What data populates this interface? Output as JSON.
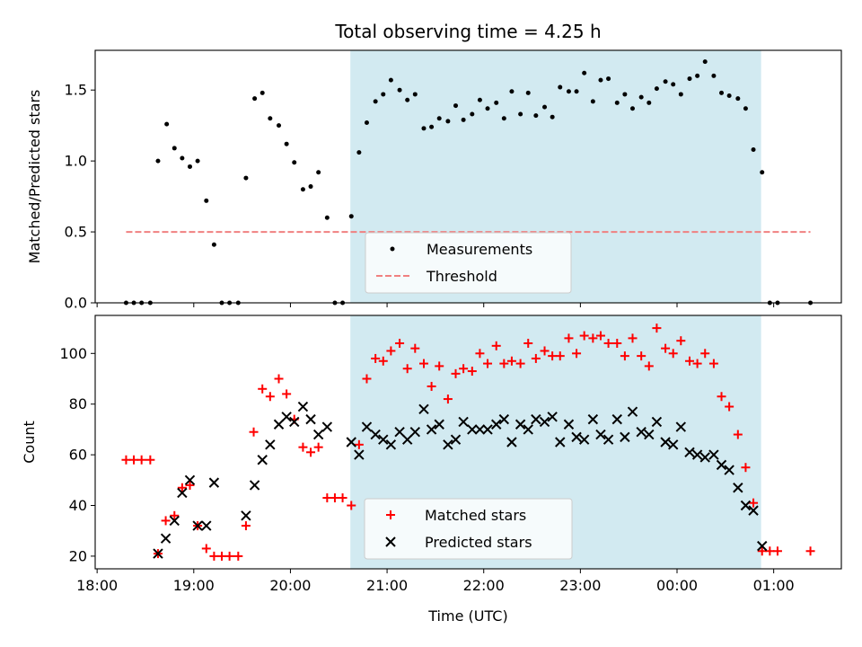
{
  "chart_data": [
    {
      "type": "scatter",
      "title": "Total observing time = 4.25 h",
      "xlabel": "",
      "ylabel": "Matched/Predicted stars",
      "ylim": [
        0,
        1.78
      ],
      "xlim_hours": [
        17.98,
        25.7
      ],
      "yticks": [
        0.0,
        0.5,
        1.0,
        1.5
      ],
      "ytick_labels": [
        "0.0",
        "0.5",
        "1.0",
        "1.5"
      ],
      "shaded_region_hours": [
        20.62,
        24.87
      ],
      "shade_color": "#add8e6",
      "legend_position": "lower-center",
      "series": [
        {
          "name": "Measurements",
          "marker": "dot",
          "color": "#000000",
          "points": [
            [
              18.3,
              0
            ],
            [
              18.38,
              0
            ],
            [
              18.46,
              0
            ],
            [
              18.55,
              0
            ],
            [
              18.63,
              1.0
            ],
            [
              18.72,
              1.26
            ],
            [
              18.8,
              1.09
            ],
            [
              18.88,
              1.02
            ],
            [
              18.96,
              0.96
            ],
            [
              19.04,
              1.0
            ],
            [
              19.13,
              0.72
            ],
            [
              19.21,
              0.41
            ],
            [
              19.29,
              0
            ],
            [
              19.37,
              0
            ],
            [
              19.46,
              0
            ],
            [
              19.54,
              0.88
            ],
            [
              19.63,
              1.44
            ],
            [
              19.71,
              1.48
            ],
            [
              19.79,
              1.3
            ],
            [
              19.88,
              1.25
            ],
            [
              19.96,
              1.12
            ],
            [
              20.04,
              0.99
            ],
            [
              20.13,
              0.8
            ],
            [
              20.21,
              0.82
            ],
            [
              20.29,
              0.92
            ],
            [
              20.38,
              0.6
            ],
            [
              20.46,
              0
            ],
            [
              20.54,
              0
            ],
            [
              20.63,
              0.61
            ],
            [
              20.71,
              1.06
            ],
            [
              20.79,
              1.27
            ],
            [
              20.88,
              1.42
            ],
            [
              20.96,
              1.47
            ],
            [
              21.04,
              1.57
            ],
            [
              21.13,
              1.5
            ],
            [
              21.21,
              1.43
            ],
            [
              21.29,
              1.47
            ],
            [
              21.38,
              1.23
            ],
            [
              21.46,
              1.24
            ],
            [
              21.54,
              1.3
            ],
            [
              21.63,
              1.28
            ],
            [
              21.71,
              1.39
            ],
            [
              21.79,
              1.29
            ],
            [
              21.88,
              1.33
            ],
            [
              21.96,
              1.43
            ],
            [
              22.04,
              1.37
            ],
            [
              22.13,
              1.41
            ],
            [
              22.21,
              1.3
            ],
            [
              22.29,
              1.49
            ],
            [
              22.38,
              1.33
            ],
            [
              22.46,
              1.48
            ],
            [
              22.54,
              1.32
            ],
            [
              22.63,
              1.38
            ],
            [
              22.71,
              1.31
            ],
            [
              22.79,
              1.52
            ],
            [
              22.88,
              1.49
            ],
            [
              22.96,
              1.49
            ],
            [
              23.04,
              1.62
            ],
            [
              23.13,
              1.42
            ],
            [
              23.21,
              1.57
            ],
            [
              23.29,
              1.58
            ],
            [
              23.38,
              1.41
            ],
            [
              23.46,
              1.47
            ],
            [
              23.54,
              1.37
            ],
            [
              23.63,
              1.45
            ],
            [
              23.71,
              1.41
            ],
            [
              23.79,
              1.51
            ],
            [
              23.88,
              1.56
            ],
            [
              23.96,
              1.54
            ],
            [
              24.04,
              1.47
            ],
            [
              24.13,
              1.58
            ],
            [
              24.21,
              1.6
            ],
            [
              24.29,
              1.7
            ],
            [
              24.38,
              1.6
            ],
            [
              24.46,
              1.48
            ],
            [
              24.54,
              1.46
            ],
            [
              24.63,
              1.44
            ],
            [
              24.71,
              1.37
            ],
            [
              24.79,
              1.08
            ],
            [
              24.88,
              0.92
            ],
            [
              24.96,
              0
            ],
            [
              25.04,
              0
            ],
            [
              25.38,
              0
            ]
          ]
        },
        {
          "name": "Threshold",
          "marker": "dashed-line",
          "color": "#f08080",
          "y": 0.5,
          "x_range_hours": [
            18.3,
            25.38
          ]
        }
      ]
    },
    {
      "type": "scatter",
      "title": "",
      "xlabel": "Time (UTC)",
      "ylabel": "Count",
      "ylim": [
        15,
        115
      ],
      "xlim_hours": [
        17.98,
        25.7
      ],
      "yticks": [
        20,
        40,
        60,
        80,
        100
      ],
      "ytick_labels": [
        "20",
        "40",
        "60",
        "80",
        "100"
      ],
      "xticks_hours": [
        18,
        19,
        20,
        21,
        22,
        23,
        24,
        25
      ],
      "xtick_labels": [
        "18:00",
        "19:00",
        "20:00",
        "21:00",
        "22:00",
        "23:00",
        "00:00",
        "01:00"
      ],
      "shaded_region_hours": [
        20.62,
        24.87
      ],
      "shade_color": "#add8e6",
      "legend_position": "lower-center",
      "series": [
        {
          "name": "Matched stars",
          "marker": "plus",
          "color": "#ff0000",
          "points": [
            [
              18.3,
              58
            ],
            [
              18.38,
              58
            ],
            [
              18.46,
              58
            ],
            [
              18.55,
              58
            ],
            [
              18.63,
              21
            ],
            [
              18.71,
              34
            ],
            [
              18.8,
              36
            ],
            [
              18.88,
              47
            ],
            [
              18.96,
              48
            ],
            [
              19.04,
              32
            ],
            [
              19.13,
              23
            ],
            [
              19.21,
              20
            ],
            [
              19.29,
              20
            ],
            [
              19.37,
              20
            ],
            [
              19.46,
              20
            ],
            [
              19.54,
              32
            ],
            [
              19.62,
              69
            ],
            [
              19.71,
              86
            ],
            [
              19.79,
              83
            ],
            [
              19.88,
              90
            ],
            [
              19.96,
              84
            ],
            [
              20.04,
              74
            ],
            [
              20.13,
              63
            ],
            [
              20.21,
              61
            ],
            [
              20.29,
              63
            ],
            [
              20.38,
              43
            ],
            [
              20.46,
              43
            ],
            [
              20.54,
              43
            ],
            [
              20.63,
              40
            ],
            [
              20.71,
              64
            ],
            [
              20.79,
              90
            ],
            [
              20.88,
              98
            ],
            [
              20.96,
              97
            ],
            [
              21.04,
              101
            ],
            [
              21.13,
              104
            ],
            [
              21.21,
              94
            ],
            [
              21.29,
              102
            ],
            [
              21.38,
              96
            ],
            [
              21.46,
              87
            ],
            [
              21.54,
              95
            ],
            [
              21.63,
              82
            ],
            [
              21.71,
              92
            ],
            [
              21.79,
              94
            ],
            [
              21.88,
              93
            ],
            [
              21.96,
              100
            ],
            [
              22.04,
              96
            ],
            [
              22.13,
              103
            ],
            [
              22.21,
              96
            ],
            [
              22.29,
              97
            ],
            [
              22.38,
              96
            ],
            [
              22.46,
              104
            ],
            [
              22.54,
              98
            ],
            [
              22.63,
              101
            ],
            [
              22.71,
              99
            ],
            [
              22.79,
              99
            ],
            [
              22.88,
              106
            ],
            [
              22.96,
              100
            ],
            [
              23.04,
              107
            ],
            [
              23.13,
              106
            ],
            [
              23.21,
              107
            ],
            [
              23.29,
              104
            ],
            [
              23.38,
              104
            ],
            [
              23.46,
              99
            ],
            [
              23.54,
              106
            ],
            [
              23.63,
              99
            ],
            [
              23.71,
              95
            ],
            [
              23.79,
              110
            ],
            [
              23.88,
              102
            ],
            [
              23.96,
              100
            ],
            [
              24.04,
              105
            ],
            [
              24.13,
              97
            ],
            [
              24.21,
              96
            ],
            [
              24.29,
              100
            ],
            [
              24.38,
              96
            ],
            [
              24.46,
              83
            ],
            [
              24.54,
              79
            ],
            [
              24.63,
              68
            ],
            [
              24.71,
              55
            ],
            [
              24.79,
              41
            ],
            [
              24.88,
              22
            ],
            [
              24.96,
              22
            ],
            [
              25.04,
              22
            ],
            [
              25.38,
              22
            ]
          ]
        },
        {
          "name": "Predicted stars",
          "marker": "x",
          "color": "#000000",
          "points": [
            [
              18.63,
              21
            ],
            [
              18.71,
              27
            ],
            [
              18.8,
              34
            ],
            [
              18.88,
              45
            ],
            [
              18.96,
              50
            ],
            [
              19.04,
              32
            ],
            [
              19.13,
              32
            ],
            [
              19.21,
              49
            ],
            [
              19.54,
              36
            ],
            [
              19.63,
              48
            ],
            [
              19.71,
              58
            ],
            [
              19.79,
              64
            ],
            [
              19.88,
              72
            ],
            [
              19.96,
              75
            ],
            [
              20.04,
              73
            ],
            [
              20.13,
              79
            ],
            [
              20.21,
              74
            ],
            [
              20.29,
              68
            ],
            [
              20.38,
              71
            ],
            [
              20.63,
              65
            ],
            [
              20.71,
              60
            ],
            [
              20.79,
              71
            ],
            [
              20.88,
              68
            ],
            [
              20.96,
              66
            ],
            [
              21.04,
              64
            ],
            [
              21.13,
              69
            ],
            [
              21.21,
              66
            ],
            [
              21.29,
              69
            ],
            [
              21.38,
              78
            ],
            [
              21.46,
              70
            ],
            [
              21.54,
              72
            ],
            [
              21.63,
              64
            ],
            [
              21.71,
              66
            ],
            [
              21.79,
              73
            ],
            [
              21.88,
              70
            ],
            [
              21.96,
              70
            ],
            [
              22.04,
              70
            ],
            [
              22.13,
              72
            ],
            [
              22.21,
              74
            ],
            [
              22.29,
              65
            ],
            [
              22.38,
              72
            ],
            [
              22.46,
              70
            ],
            [
              22.54,
              74
            ],
            [
              22.63,
              73
            ],
            [
              22.71,
              75
            ],
            [
              22.79,
              65
            ],
            [
              22.88,
              72
            ],
            [
              22.96,
              67
            ],
            [
              23.04,
              66
            ],
            [
              23.13,
              74
            ],
            [
              23.21,
              68
            ],
            [
              23.29,
              66
            ],
            [
              23.38,
              74
            ],
            [
              23.46,
              67
            ],
            [
              23.54,
              77
            ],
            [
              23.63,
              69
            ],
            [
              23.71,
              68
            ],
            [
              23.79,
              73
            ],
            [
              23.88,
              65
            ],
            [
              23.96,
              64
            ],
            [
              24.04,
              71
            ],
            [
              24.13,
              61
            ],
            [
              24.21,
              60
            ],
            [
              24.29,
              59
            ],
            [
              24.38,
              60
            ],
            [
              24.46,
              56
            ],
            [
              24.54,
              54
            ],
            [
              24.63,
              47
            ],
            [
              24.71,
              40
            ],
            [
              24.79,
              38
            ],
            [
              24.88,
              24
            ]
          ]
        }
      ]
    }
  ]
}
